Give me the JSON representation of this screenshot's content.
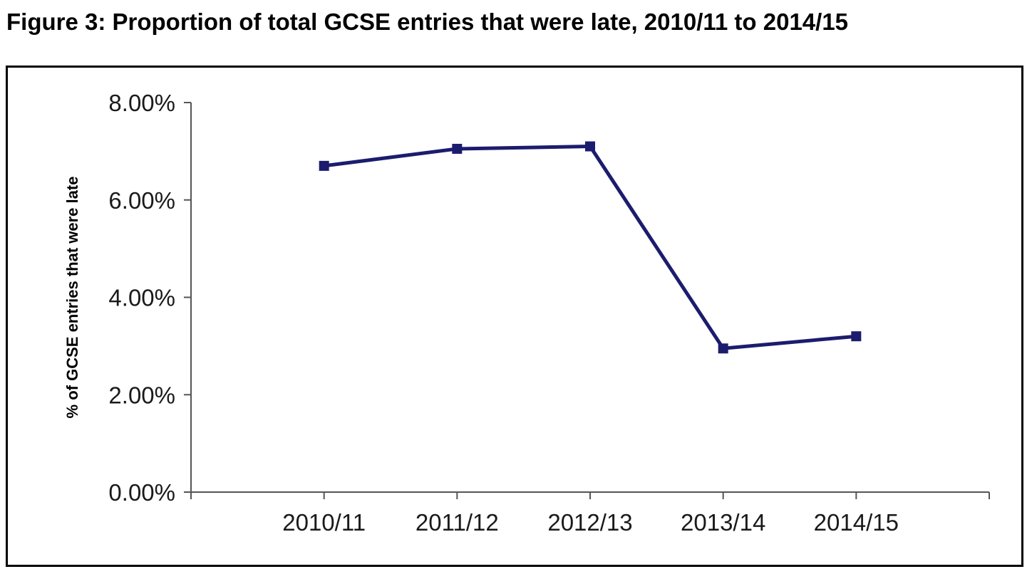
{
  "figure": {
    "title": "Figure 3: Proportion of total GCSE entries that were late, 2010/11 to 2014/15"
  },
  "chart_data": {
    "type": "line",
    "title": "",
    "xlabel": "",
    "ylabel": "% of GCSE entries that were late",
    "categories": [
      "2010/11",
      "2011/12",
      "2012/13",
      "2013/14",
      "2014/15"
    ],
    "series": [
      {
        "values": [
          6.7,
          7.05,
          7.1,
          2.95,
          3.2
        ],
        "color": "#1c1c6e",
        "marker": "square"
      }
    ],
    "ylim": [
      0,
      8
    ],
    "yticks": [
      0,
      2,
      4,
      6,
      8
    ],
    "ytick_labels": [
      "0.00%",
      "2.00%",
      "4.00%",
      "6.00%",
      "8.00%"
    ],
    "grid": false,
    "legend": "none"
  }
}
